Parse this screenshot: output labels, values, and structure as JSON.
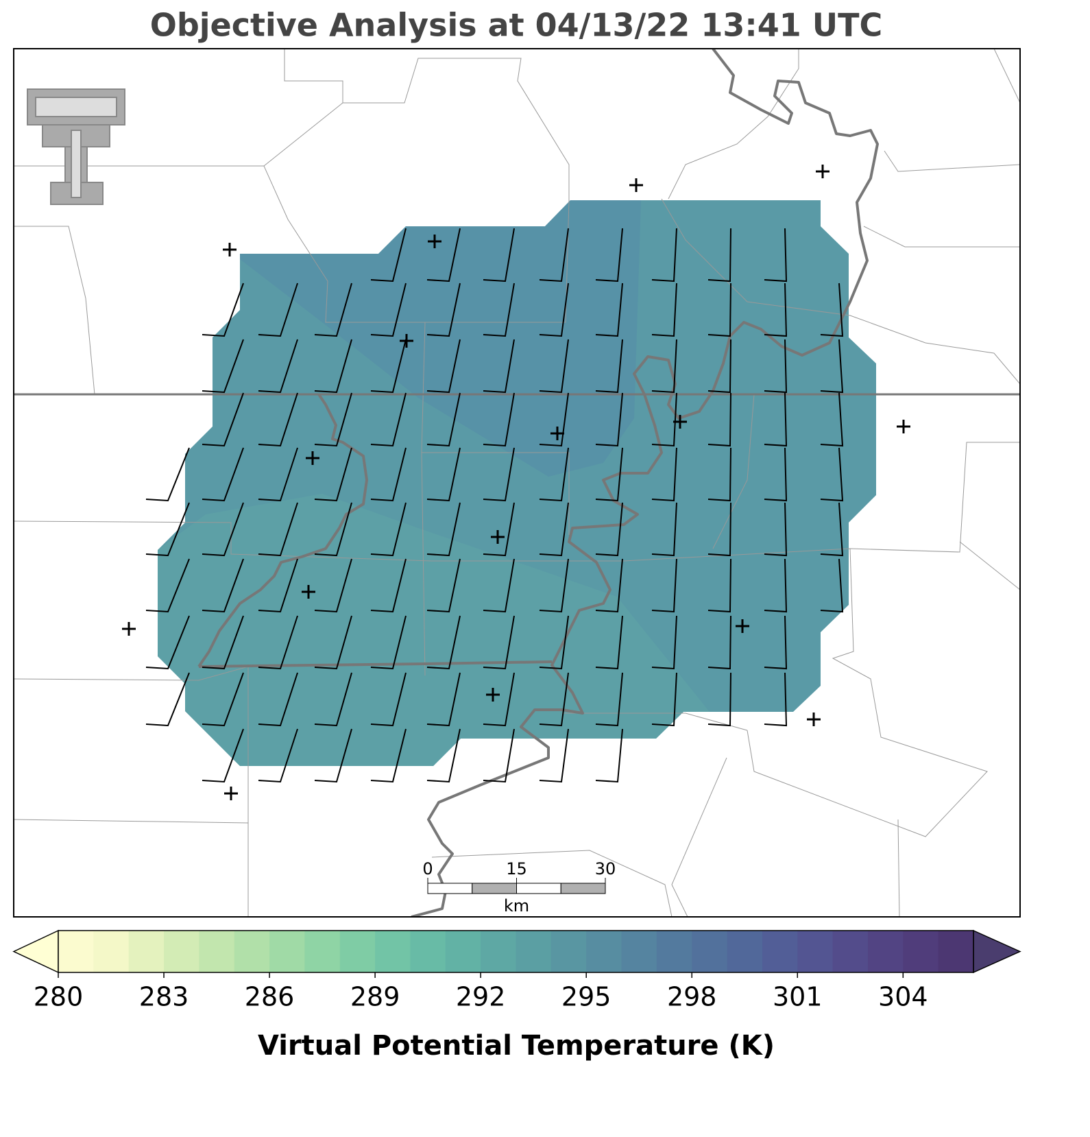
{
  "title": "Objective Analysis at 04/13/22 13:41 UTC",
  "colorbar": {
    "label": "Virtual Potential Temperature (K)",
    "lim": [
      280,
      306
    ],
    "ticks": [
      280,
      283,
      286,
      289,
      292,
      295,
      298,
      301,
      304
    ],
    "colors": [
      "#fbfbcf",
      "#f4f8c8",
      "#e4f2be",
      "#d3ecb5",
      "#c2e6ae",
      "#b1e0a9",
      "#a0daa6",
      "#8fd4a5",
      "#7fcca5",
      "#72c4a6",
      "#68bba6",
      "#62b2a5",
      "#5ea8a4",
      "#5b9fa3",
      "#5996a2",
      "#578da1",
      "#5584a0",
      "#537a9e",
      "#52719c",
      "#51689a",
      "#525e97",
      "#535592",
      "#534c8b",
      "#524483",
      "#503d7b",
      "#4c3772"
    ],
    "under_color": "#ffffd4",
    "over_color": "#4a3d6e"
  },
  "scale_bar": {
    "ticks": [
      0,
      15,
      30
    ],
    "unit": "km"
  }
}
